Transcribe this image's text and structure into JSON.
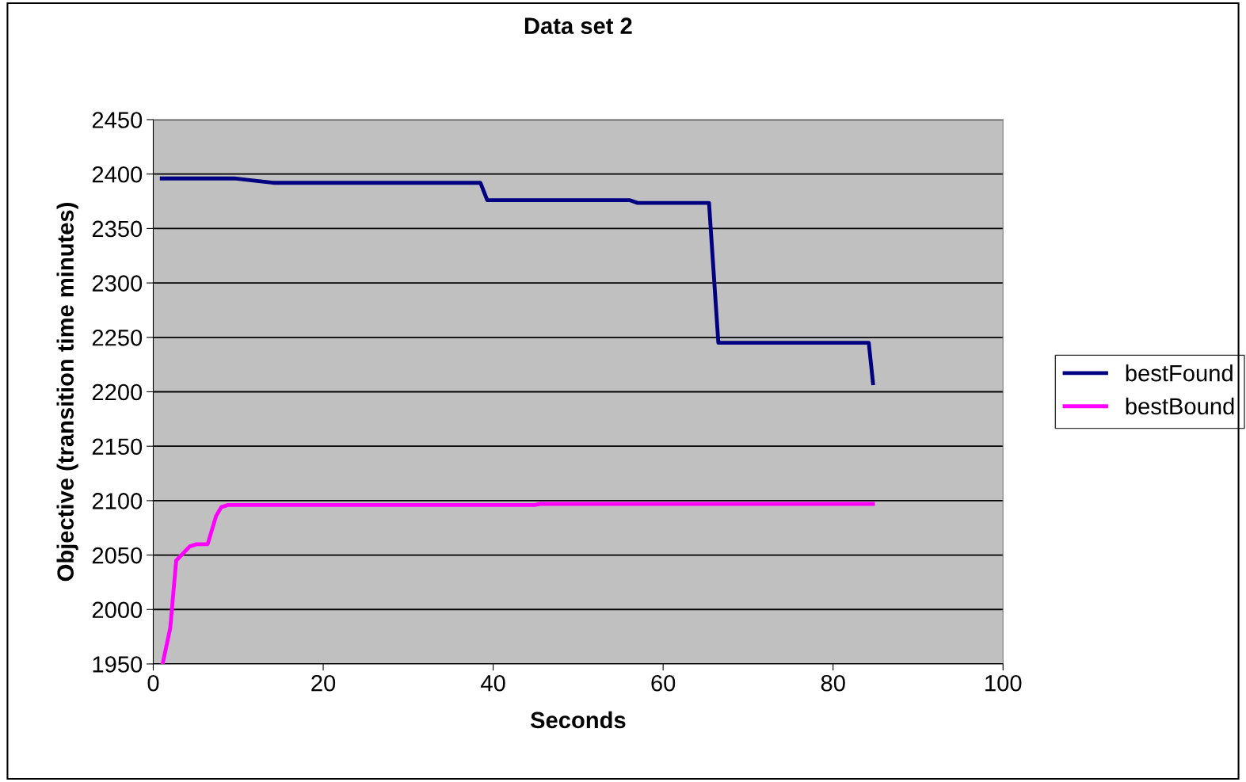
{
  "chart_data": {
    "type": "line",
    "title": "Data set 2",
    "xlabel": "Seconds",
    "ylabel": "Objective (transition time minutes)",
    "xlim": [
      0,
      100
    ],
    "xticks": [
      0,
      20,
      40,
      60,
      80,
      100
    ],
    "ylim": [
      1950,
      2450
    ],
    "yticks": [
      1950,
      2000,
      2050,
      2100,
      2150,
      2200,
      2250,
      2300,
      2350,
      2400,
      2450
    ],
    "grid": "y",
    "legend": "right",
    "marker": "none",
    "line_style": "solid",
    "series": [
      {
        "name": "bestFound",
        "color": "#000080",
        "x": [
          1,
          9.5,
          14.1,
          38.5,
          39.3,
          56.1,
          57.0,
          65.4,
          66.5,
          84.2,
          84.7
        ],
        "values": [
          2396,
          2396,
          2392,
          2392,
          2376,
          2376,
          2373.5,
          2373.5,
          2245,
          2245,
          2208
        ]
      },
      {
        "name": "bestBound",
        "color": "#ff00ff",
        "x": [
          1.1,
          2.0,
          2.7,
          4.3,
          5.1,
          6.4,
          7.4,
          8.0,
          8.8,
          44.9,
          45.5,
          84.7
        ],
        "values": [
          1950,
          1983,
          2045,
          2058,
          2060,
          2060,
          2086,
          2094,
          2096,
          2096,
          2097,
          2097
        ]
      }
    ]
  }
}
